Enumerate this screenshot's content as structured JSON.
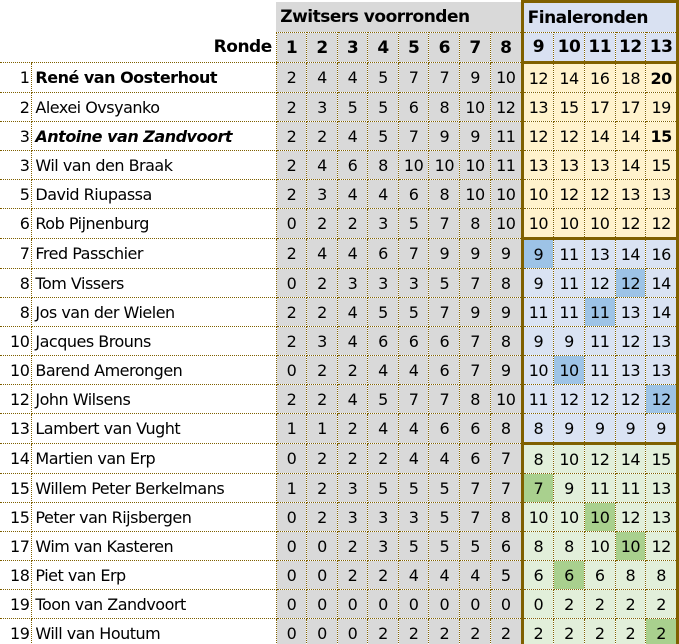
{
  "header": {
    "group_prelim": "Zwitsers voorronden",
    "group_final": "Finaleronden",
    "ronde_label": "Ronde",
    "rounds": [
      "1",
      "2",
      "3",
      "4",
      "5",
      "6",
      "7",
      "8",
      "9",
      "10",
      "11",
      "12",
      "13"
    ]
  },
  "colors": {
    "prelim_bg": "#d9d9d9",
    "final_header_bg": "#d9e1f2",
    "group1_bg": "#fff2cc",
    "group2_bg": "#dae3f3",
    "group2_highlight": "#9dc3e6",
    "group3_bg": "#e2efda",
    "group3_highlight": "#a9d08e",
    "border": "#7f6000"
  },
  "rows": [
    {
      "rank": "1",
      "name": "René van Oosterhout",
      "style": "bold",
      "group": 1,
      "scores": [
        "2",
        "4",
        "4",
        "5",
        "7",
        "7",
        "9",
        "10",
        "12",
        "14",
        "16",
        "18",
        "20"
      ],
      "bold_round": 13,
      "highlight_round": null
    },
    {
      "rank": "2",
      "name": "Alexei Ovsyanko",
      "style": "normal",
      "group": 1,
      "scores": [
        "2",
        "3",
        "5",
        "5",
        "6",
        "8",
        "10",
        "12",
        "13",
        "15",
        "17",
        "17",
        "19"
      ],
      "bold_round": null,
      "highlight_round": null
    },
    {
      "rank": "3",
      "name": "Antoine van Zandvoort",
      "style": "bold-italic",
      "group": 1,
      "scores": [
        "2",
        "2",
        "4",
        "5",
        "7",
        "9",
        "9",
        "11",
        "12",
        "12",
        "14",
        "14",
        "15"
      ],
      "bold_round": 13,
      "highlight_round": null
    },
    {
      "rank": "3",
      "name": "Wil van den Braak",
      "style": "normal",
      "group": 1,
      "scores": [
        "2",
        "4",
        "6",
        "8",
        "10",
        "10",
        "10",
        "11",
        "13",
        "13",
        "13",
        "14",
        "15"
      ],
      "bold_round": null,
      "highlight_round": null
    },
    {
      "rank": "5",
      "name": "David Riupassa",
      "style": "normal",
      "group": 1,
      "scores": [
        "2",
        "3",
        "4",
        "4",
        "6",
        "8",
        "10",
        "10",
        "10",
        "12",
        "12",
        "13",
        "13"
      ],
      "bold_round": null,
      "highlight_round": null
    },
    {
      "rank": "6",
      "name": "Rob Pijnenburg",
      "style": "normal",
      "group": 1,
      "scores": [
        "0",
        "2",
        "2",
        "3",
        "5",
        "7",
        "8",
        "10",
        "10",
        "10",
        "10",
        "12",
        "12"
      ],
      "bold_round": null,
      "highlight_round": null
    },
    {
      "rank": "7",
      "name": "Fred Passchier",
      "style": "normal",
      "group": 2,
      "scores": [
        "2",
        "4",
        "4",
        "6",
        "7",
        "9",
        "9",
        "9",
        "9",
        "11",
        "13",
        "14",
        "16"
      ],
      "bold_round": null,
      "highlight_round": 9
    },
    {
      "rank": "8",
      "name": "Tom Vissers",
      "style": "normal",
      "group": 2,
      "scores": [
        "0",
        "2",
        "3",
        "3",
        "3",
        "5",
        "7",
        "8",
        "9",
        "11",
        "12",
        "12",
        "14"
      ],
      "bold_round": null,
      "highlight_round": 12
    },
    {
      "rank": "8",
      "name": "Jos van der Wielen",
      "style": "normal",
      "group": 2,
      "scores": [
        "2",
        "2",
        "4",
        "5",
        "5",
        "7",
        "9",
        "9",
        "11",
        "11",
        "11",
        "13",
        "14"
      ],
      "bold_round": null,
      "highlight_round": 11
    },
    {
      "rank": "10",
      "name": "Jacques Brouns",
      "style": "normal",
      "group": 2,
      "scores": [
        "2",
        "3",
        "4",
        "6",
        "6",
        "6",
        "7",
        "8",
        "9",
        "9",
        "11",
        "12",
        "13"
      ],
      "bold_round": null,
      "highlight_round": null
    },
    {
      "rank": "10",
      "name": "Barend Amerongen",
      "style": "normal",
      "group": 2,
      "scores": [
        "0",
        "2",
        "2",
        "4",
        "4",
        "6",
        "7",
        "9",
        "10",
        "10",
        "11",
        "13",
        "13"
      ],
      "bold_round": null,
      "highlight_round": 10
    },
    {
      "rank": "12",
      "name": "John Wilsens",
      "style": "normal",
      "group": 2,
      "scores": [
        "2",
        "2",
        "4",
        "5",
        "7",
        "7",
        "8",
        "10",
        "11",
        "12",
        "12",
        "12",
        "12"
      ],
      "bold_round": null,
      "highlight_round": 13
    },
    {
      "rank": "13",
      "name": "Lambert van Vught",
      "style": "normal",
      "group": 2,
      "scores": [
        "1",
        "1",
        "2",
        "4",
        "4",
        "6",
        "6",
        "8",
        "8",
        "9",
        "9",
        "9",
        "9"
      ],
      "bold_round": null,
      "highlight_round": null
    },
    {
      "rank": "14",
      "name": "Martien van Erp",
      "style": "normal",
      "group": 3,
      "scores": [
        "0",
        "2",
        "2",
        "2",
        "4",
        "4",
        "6",
        "7",
        "8",
        "10",
        "12",
        "14",
        "15"
      ],
      "bold_round": null,
      "highlight_round": null
    },
    {
      "rank": "15",
      "name": "Willem Peter Berkelmans",
      "style": "normal",
      "group": 3,
      "scores": [
        "1",
        "2",
        "3",
        "5",
        "5",
        "5",
        "7",
        "7",
        "7",
        "9",
        "11",
        "11",
        "13"
      ],
      "bold_round": null,
      "highlight_round": 9
    },
    {
      "rank": "15",
      "name": "Peter van Rijsbergen",
      "style": "normal",
      "group": 3,
      "scores": [
        "0",
        "2",
        "3",
        "3",
        "3",
        "5",
        "7",
        "8",
        "10",
        "10",
        "10",
        "12",
        "13"
      ],
      "bold_round": null,
      "highlight_round": 11
    },
    {
      "rank": "17",
      "name": "Wim van Kasteren",
      "style": "normal",
      "group": 3,
      "scores": [
        "0",
        "0",
        "2",
        "3",
        "5",
        "5",
        "5",
        "6",
        "8",
        "8",
        "10",
        "10",
        "12"
      ],
      "bold_round": null,
      "highlight_round": 12
    },
    {
      "rank": "18",
      "name": "Piet van Erp",
      "style": "normal",
      "group": 3,
      "scores": [
        "0",
        "0",
        "2",
        "2",
        "4",
        "4",
        "4",
        "5",
        "6",
        "6",
        "6",
        "8",
        "8"
      ],
      "bold_round": null,
      "highlight_round": 10
    },
    {
      "rank": "19",
      "name": "Toon van Zandvoort",
      "style": "normal",
      "group": 3,
      "scores": [
        "0",
        "0",
        "0",
        "0",
        "0",
        "0",
        "0",
        "0",
        "0",
        "2",
        "2",
        "2",
        "2"
      ],
      "bold_round": null,
      "highlight_round": null
    },
    {
      "rank": "19",
      "name": "Will van Houtum",
      "style": "normal",
      "group": 3,
      "scores": [
        "0",
        "0",
        "0",
        "2",
        "2",
        "2",
        "2",
        "2",
        "2",
        "2",
        "2",
        "2",
        "2"
      ],
      "bold_round": null,
      "highlight_round": 13
    }
  ]
}
